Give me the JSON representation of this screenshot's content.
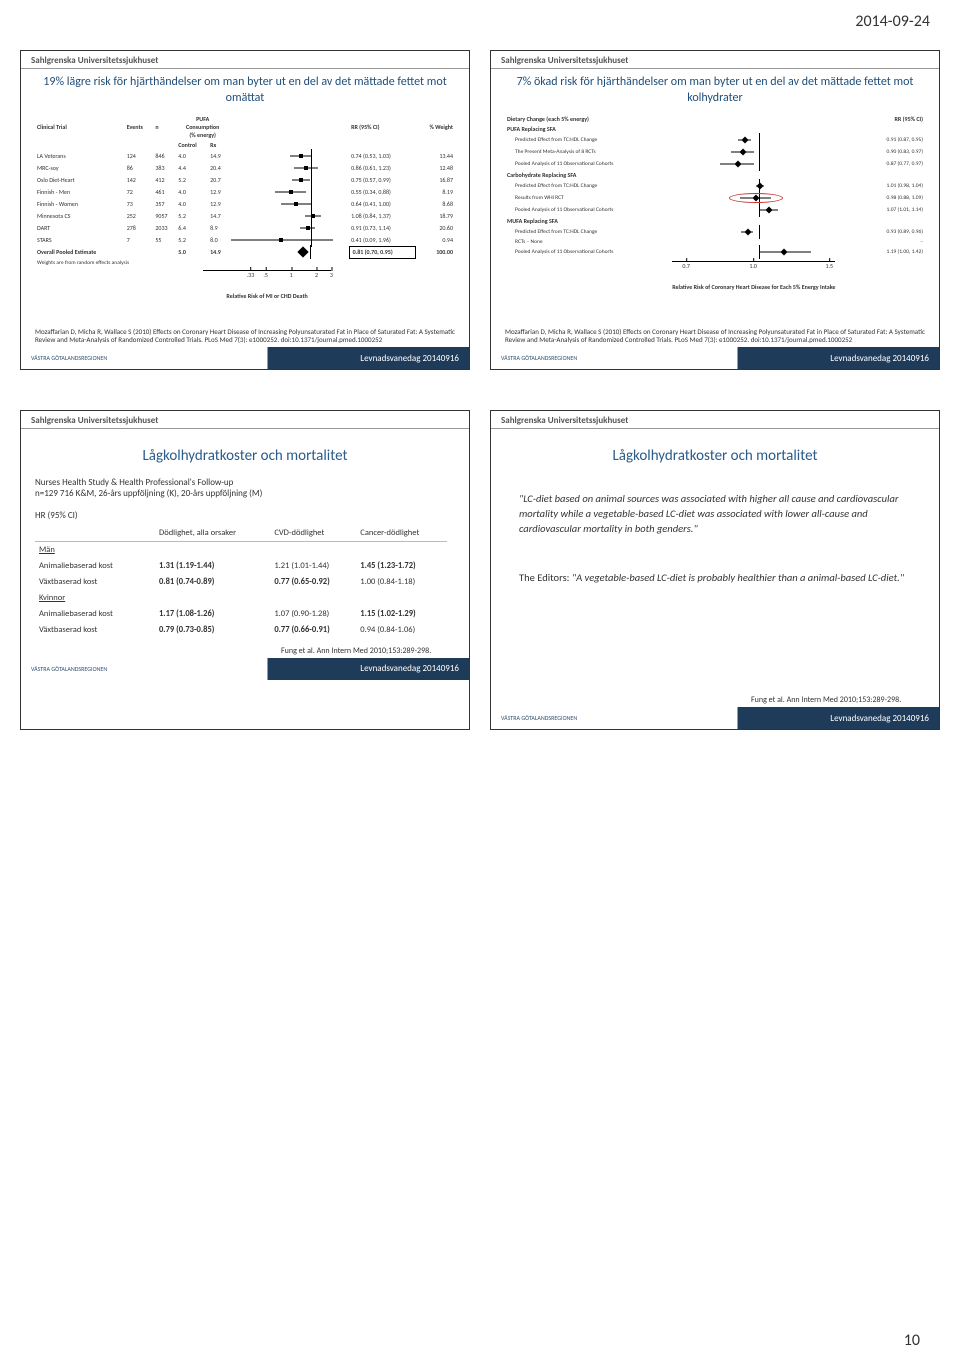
{
  "page": {
    "date": "2014-09-24",
    "number": "10"
  },
  "common": {
    "org": "Sahlgrenska Universitetssjukhuset",
    "footer_logo": "VÄSTRA GÖTALANDSREGIONEN",
    "footer_text": "Levnadsvanedag 20140916",
    "citation": "Mozaffarian D, Micha R, Wallace S (2010) Effects on Coronary Heart Disease of Increasing Polyunsaturated Fat in Place of Saturated Fat: A Systematic Review and Meta-Analysis of Randomized Controlled Trials. PLoS Med 7(3): e1000252. doi:10.1371/journal.pmed.1000252",
    "fung_ref": "Fung et al. Ann Intern Med 2010;153:289-298."
  },
  "colors": {
    "title": "#1f4e79",
    "footer_bg": "#1f3b5a",
    "footer_text": "#ffffff",
    "ring": "#cc3333"
  },
  "slide1": {
    "title": "19% lägre risk för hjärthändelser om man byter ut en del av det mättade fettet mot omättat",
    "col_headers": [
      "Clinical Trial",
      "Events",
      "n",
      "Control",
      "Rx",
      "",
      "RR (95% CI)",
      "% Weight"
    ],
    "pufa_header1": "PUFA",
    "pufa_header2": "Consumption",
    "pufa_header3": "(% energy)",
    "rows": [
      {
        "trial": "LA Veterans",
        "events": "124",
        "n": "846",
        "ctrl": "4.0",
        "rx": "14.9",
        "rr": "0.74 (0.53, 1.03)",
        "wt": "13.44",
        "est": 0.74,
        "lo": 0.53,
        "hi": 1.03
      },
      {
        "trial": "MRC-soy",
        "events": "86",
        "n": "383",
        "ctrl": "4.4",
        "rx": "20.4",
        "rr": "0.86 (0.61, 1.23)",
        "wt": "12.48",
        "est": 0.86,
        "lo": 0.61,
        "hi": 1.23
      },
      {
        "trial": "Oslo Diet-Heart",
        "events": "142",
        "n": "412",
        "ctrl": "5.2",
        "rx": "20.7",
        "rr": "0.75 (0.57, 0.99)",
        "wt": "16.87",
        "est": 0.75,
        "lo": 0.57,
        "hi": 0.99
      },
      {
        "trial": "Finnish - Men",
        "events": "72",
        "n": "461",
        "ctrl": "4.0",
        "rx": "12.9",
        "rr": "0.55 (0.34, 0.88)",
        "wt": "8.19",
        "est": 0.55,
        "lo": 0.34,
        "hi": 0.88
      },
      {
        "trial": "Finnish - Women",
        "events": "73",
        "n": "357",
        "ctrl": "4.0",
        "rx": "12.9",
        "rr": "0.64 (0.41, 1.00)",
        "wt": "8.68",
        "est": 0.64,
        "lo": 0.41,
        "hi": 1.0
      },
      {
        "trial": "Minnesota CS",
        "events": "252",
        "n": "9057",
        "ctrl": "5.2",
        "rx": "14.7",
        "rr": "1.08 (0.84, 1.37)",
        "wt": "18.79",
        "est": 1.08,
        "lo": 0.84,
        "hi": 1.37
      },
      {
        "trial": "DART",
        "events": "278",
        "n": "2033",
        "ctrl": "6.4",
        "rx": "8.9",
        "rr": "0.91 (0.73, 1.14)",
        "wt": "20.60",
        "est": 0.91,
        "lo": 0.73,
        "hi": 1.14
      },
      {
        "trial": "STARS",
        "events": "7",
        "n": "55",
        "ctrl": "5.2",
        "rx": "8.0",
        "rr": "0.41 (0.09, 1.96)",
        "wt": "0.94",
        "est": 0.41,
        "lo": 0.09,
        "hi": 1.96
      }
    ],
    "overall": {
      "label": "Overall Pooled Estimate",
      "ctrl": "5.0",
      "rx": "14.9",
      "rr": "0.81 (0.70, 0.95)",
      "wt": "100.00",
      "est": 0.81,
      "lo": 0.7,
      "hi": 0.95
    },
    "weights_note": "Weights are from random effects analysis",
    "axis_ticks": [
      ".33",
      ".5",
      "1",
      "2",
      "3"
    ],
    "axis_vals": [
      0.33,
      0.5,
      1,
      2,
      3
    ],
    "axis_label": "Relative Risk of MI or CHD Death",
    "x_domain": [
      0.09,
      3
    ]
  },
  "slide2": {
    "title": "7% ökad risk för hjärthändelser om man byter ut en del av det mättade fettet mot kolhydrater",
    "heading": "Dietary Change (each 5% energy)",
    "rr_header": "RR (95% CI)",
    "sections": [
      {
        "name": "PUFA Replacing SFA",
        "rows": [
          {
            "label": "Predicted Effect from TC:HDL Change",
            "rr": "0.91 (0.87, 0.95)",
            "est": 0.91,
            "lo": 0.87,
            "hi": 0.95
          },
          {
            "label": "The Present Meta-Analysis of 8 RCTs",
            "rr": "0.90 (0.83, 0.97)",
            "est": 0.9,
            "lo": 0.83,
            "hi": 0.97
          },
          {
            "label": "Pooled Analysis of 11 Observational Cohorts",
            "rr": "0.87 (0.77, 0.97)",
            "est": 0.87,
            "lo": 0.77,
            "hi": 0.97
          }
        ]
      },
      {
        "name": "Carbohydrate Replacing SFA",
        "rows": [
          {
            "label": "Predicted Effect from TC:HDL Change",
            "rr": "1.01 (0.98, 1.04)",
            "est": 1.01,
            "lo": 0.98,
            "hi": 1.04
          },
          {
            "label": "Results from WHI RCT",
            "rr": "0.98 (0.88, 1.09)",
            "est": 0.98,
            "lo": 0.88,
            "hi": 1.09,
            "ring": true
          },
          {
            "label": "Pooled Analysis of 11 Observational Cohorts",
            "rr": "1.07 (1.01, 1.14)",
            "est": 1.07,
            "lo": 1.01,
            "hi": 1.14
          }
        ]
      },
      {
        "name": "MUFA Replacing SFA",
        "rows": [
          {
            "label": "Predicted Effect from TC:HDL Change",
            "rr": "0.93 (0.89, 0.96)",
            "est": 0.93,
            "lo": 0.89,
            "hi": 0.96
          },
          {
            "label": "RCTs – None",
            "rr": "–",
            "est": null
          },
          {
            "label": "Pooled Analysis of 11 Observational Cohorts",
            "rr": "1.19 (1.00, 1.42)",
            "est": 1.19,
            "lo": 1.0,
            "hi": 1.42
          }
        ]
      }
    ],
    "axis_ticks": [
      "0.7",
      "1.0",
      "1.5"
    ],
    "axis_vals": [
      0.7,
      1.0,
      1.5
    ],
    "axis_label": "Relative Risk of Coronary Heart Disease for Each 5% Energy Intake",
    "x_domain": [
      0.65,
      1.55
    ]
  },
  "slide3": {
    "title": "Lågkolhydratkoster och mortalitet",
    "study1": "Nurses Health Study & Health Professional's Follow-up",
    "study2": "n=129 716 K&M, 26-års uppföljning (K), 20-års uppföljning (M)",
    "hr_label": "HR (95% CI)",
    "columns": [
      "",
      "Dödlighet, alla orsaker",
      "CVD-dödlighet",
      "Cancer-dödlighet"
    ],
    "groups": [
      {
        "name": "Män",
        "rows": [
          {
            "label": "Animaliebaserad kost",
            "c1": "1.31 (1.19-1.44)",
            "c2": "1.21 (1.01-1.44)",
            "c3": "1.45 (1.23-1.72)",
            "bold": [
              0,
              2
            ]
          },
          {
            "label": "Växtbaserad kost",
            "c1": "0.81 (0.74-0.89)",
            "c2": "0.77 (0.65-0.92)",
            "c3": "1.00 (0.84-1.18)",
            "bold": [
              0,
              1
            ]
          }
        ]
      },
      {
        "name": "Kvinnor",
        "rows": [
          {
            "label": "Animaliebaserad kost",
            "c1": "1.17 (1.08-1.26)",
            "c2": "1.07 (0.90-1.28)",
            "c3": "1.15 (1.02-1.29)",
            "bold": [
              0,
              2
            ]
          },
          {
            "label": "Växtbaserad kost",
            "c1": "0.79 (0.73-0.85)",
            "c2": "0.77 (0.66-0.91)",
            "c3": "0.94 (0.84-1.06)",
            "bold": [
              0,
              1
            ]
          }
        ]
      }
    ]
  },
  "slide4": {
    "title": "Lågkolhydratkoster och mortalitet",
    "quote1_text": "\"LC-diet based on animal sources was associated with higher all cause and cardiovascular mortality while a vegetable-based LC-diet was associated with lower all-cause and cardiovascular mortality in both genders.\"",
    "quote2_lead": "The Editors:",
    "quote2_text": "\"A vegetable-based LC-diet is probably healthier than a animal-based LC-diet.\""
  }
}
